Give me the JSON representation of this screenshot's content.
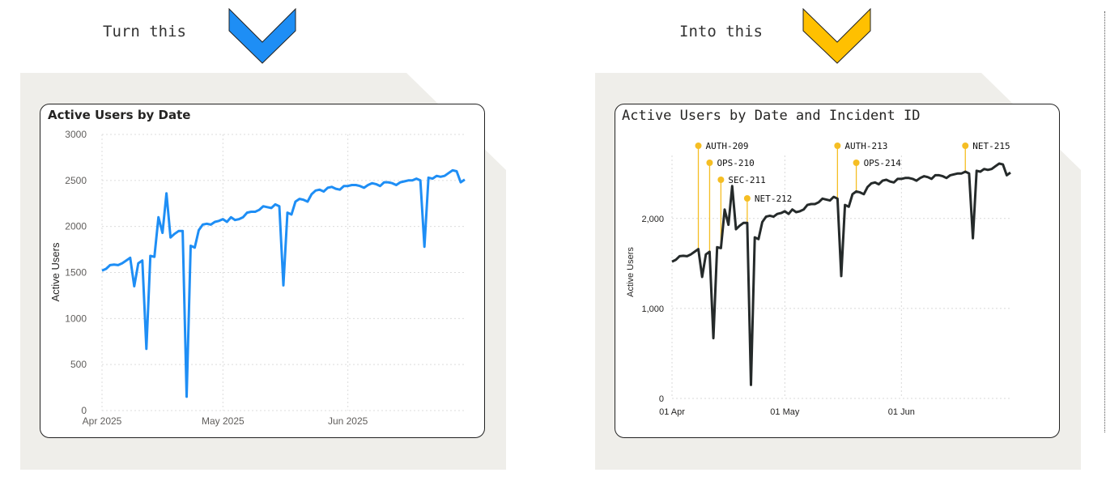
{
  "headings": {
    "left": "Turn this",
    "right": "Into this"
  },
  "colors": {
    "blue_chevron": "#1e8ef5",
    "gold_chevron": "#ffc000",
    "blue_line": "#1e8ef5",
    "dark_line": "#252a2a",
    "gold_marker": "#f5be24",
    "background_panel": "#efeeea"
  },
  "chart_data": [
    {
      "type": "line",
      "title": "Active Users by Date",
      "xlabel": "",
      "ylabel": "Active Users",
      "ylim": [
        0,
        3000
      ],
      "yticks": [
        0,
        500,
        1000,
        1500,
        2000,
        2500,
        3000
      ],
      "ytick_labels": [
        "0",
        "500",
        "1000",
        "1500",
        "2000",
        "2500",
        "3000"
      ],
      "xticks": [
        {
          "day": 0,
          "label": "Apr 2025"
        },
        {
          "day": 30,
          "label": "May 2025"
        },
        {
          "day": 61,
          "label": "Jun 2025"
        }
      ],
      "x_start": "2025-04-01",
      "x_end": "2025-06-30",
      "grid": true,
      "color": "#1e8ef5"
    },
    {
      "type": "line",
      "title": "Active Users by Date and Incident ID",
      "xlabel": "",
      "ylabel": "Active Users",
      "ylim": [
        0,
        2700
      ],
      "yticks": [
        0,
        1000,
        2000
      ],
      "ytick_labels": [
        "0",
        "1,000",
        "2,000"
      ],
      "xticks": [
        {
          "day": 0,
          "label": "01 Apr"
        },
        {
          "day": 30,
          "label": "01 May"
        },
        {
          "day": 61,
          "label": "01 Jun"
        }
      ],
      "grid": true,
      "color": "#252a2a",
      "annotations": [
        {
          "id": "AUTH-209",
          "date": "2025-04-08"
        },
        {
          "id": "OPS-210",
          "date": "2025-04-11"
        },
        {
          "id": "SEC-211",
          "date": "2025-04-14"
        },
        {
          "id": "NET-212",
          "date": "2025-04-21"
        },
        {
          "id": "AUTH-213",
          "date": "2025-05-15"
        },
        {
          "id": "OPS-214",
          "date": "2025-05-20"
        },
        {
          "id": "NET-215",
          "date": "2025-06-18"
        }
      ]
    }
  ],
  "series_values": [
    1520,
    1540,
    1580,
    1585,
    1580,
    1600,
    1630,
    1660,
    1350,
    1600,
    1630,
    670,
    1680,
    1670,
    2100,
    1930,
    2360,
    1880,
    1920,
    1950,
    1950,
    150,
    1790,
    1770,
    1960,
    2020,
    2030,
    2020,
    2050,
    2060,
    2080,
    2050,
    2100,
    2070,
    2080,
    2100,
    2150,
    2160,
    2160,
    2180,
    2220,
    2210,
    2200,
    2240,
    2220,
    1360,
    2150,
    2130,
    2270,
    2300,
    2290,
    2270,
    2350,
    2390,
    2400,
    2380,
    2420,
    2430,
    2410,
    2400,
    2440,
    2440,
    2450,
    2450,
    2440,
    2420,
    2450,
    2470,
    2460,
    2440,
    2480,
    2480,
    2470,
    2450,
    2480,
    2490,
    2500,
    2500,
    2520,
    2500,
    1780,
    2530,
    2520,
    2550,
    2540,
    2550,
    2580,
    2610,
    2600,
    2480,
    2510
  ]
}
